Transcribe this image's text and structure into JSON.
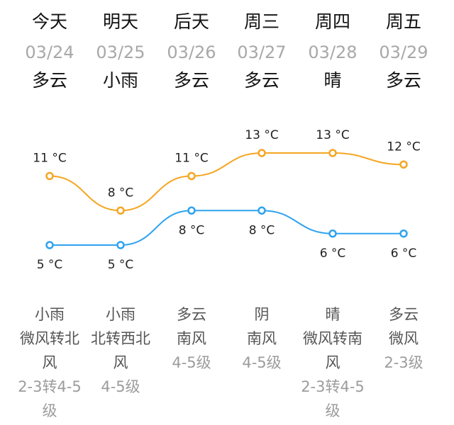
{
  "days": [
    {
      "day": "今天",
      "date": "03/24",
      "cond": "多云",
      "high": 11,
      "low": 5,
      "high_label": "11 °C",
      "low_label": "5 °C",
      "night_lines": [
        "小雨",
        "微风转北",
        "风"
      ],
      "level_lines": [
        "2-3转4-5",
        "级"
      ]
    },
    {
      "day": "明天",
      "date": "03/25",
      "cond": "小雨",
      "high": 8,
      "low": 5,
      "high_label": "8 °C",
      "low_label": "5 °C",
      "night_lines": [
        "小雨",
        "北转西北",
        "风"
      ],
      "level_lines": [
        "4-5级"
      ]
    },
    {
      "day": "后天",
      "date": "03/26",
      "cond": "多云",
      "high": 11,
      "low": 8,
      "high_label": "11 °C",
      "low_label": "8 °C",
      "night_lines": [
        "多云",
        "南风"
      ],
      "level_lines": [
        "4-5级"
      ]
    },
    {
      "day": "周三",
      "date": "03/27",
      "cond": "多云",
      "high": 13,
      "low": 8,
      "high_label": "13 °C",
      "low_label": "8 °C",
      "night_lines": [
        "阴",
        "南风"
      ],
      "level_lines": [
        "4-5级"
      ]
    },
    {
      "day": "周四",
      "date": "03/28",
      "cond": "晴",
      "high": 13,
      "low": 6,
      "high_label": "13 °C",
      "low_label": "6 °C",
      "night_lines": [
        "晴",
        "微风转南",
        "风"
      ],
      "level_lines": [
        "2-3转4-5",
        "级"
      ]
    },
    {
      "day": "周五",
      "date": "03/29",
      "cond": "多云",
      "high": 12,
      "low": 6,
      "high_label": "12 °C",
      "low_label": "6 °C",
      "night_lines": [
        "多云",
        "微风"
      ],
      "level_lines": [
        "2-3级"
      ]
    }
  ],
  "chart_data": {
    "type": "line",
    "x": [
      "今天",
      "明天",
      "后天",
      "周三",
      "周四",
      "周五"
    ],
    "series": [
      {
        "values": [
          11,
          8,
          11,
          13,
          13,
          12
        ],
        "color": "#f5a623"
      },
      {
        "values": [
          5,
          5,
          8,
          8,
          6,
          6
        ],
        "color": "#2fa3f0"
      }
    ]
  },
  "colors": {
    "high": "#f5a623",
    "low": "#2fa3f0",
    "date": "#a8a8a8",
    "level": "#9c9c9c"
  }
}
